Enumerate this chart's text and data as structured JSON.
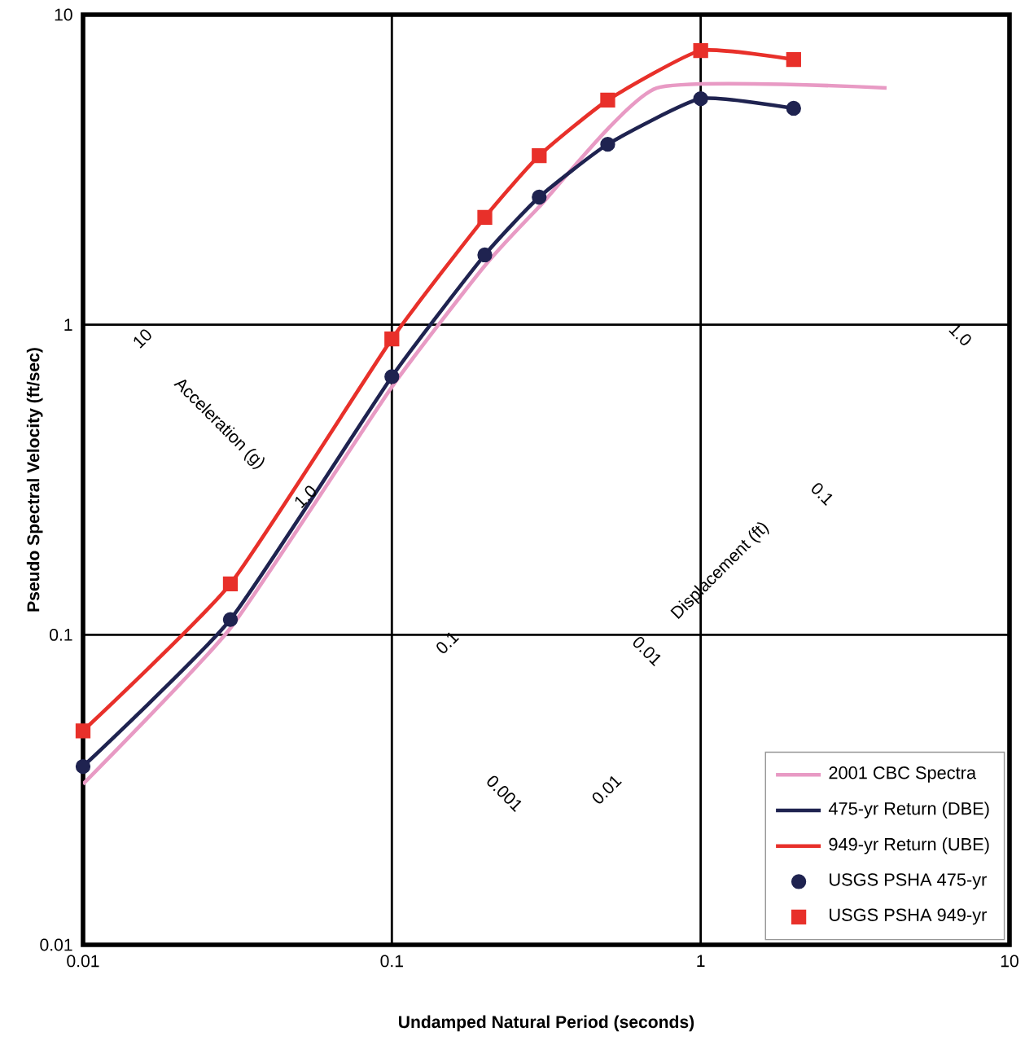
{
  "chart_data": {
    "type": "line",
    "xlabel": "Undamped Natural Period (seconds)",
    "ylabel": "Pseudo Spectral Velocity (ft/sec)",
    "log": "xy",
    "grid": true,
    "legend": "bottom right",
    "xlim": [
      0.01,
      10
    ],
    "xticks": [
      0.01,
      0.1,
      1,
      10
    ],
    "ylim": [
      0.01,
      10
    ],
    "yticks": [
      0.01,
      0.1,
      1,
      10
    ],
    "series": [
      {
        "name": "2001 CBC Spectra",
        "color": "#e89ac4",
        "line_style": "solid",
        "marker": "none",
        "x": [
          0.01,
          0.03,
          0.1,
          0.2,
          0.3,
          0.72,
          4
        ],
        "values": [
          0.033,
          0.105,
          0.63,
          1.55,
          2.4,
          5.8,
          5.8
        ]
      },
      {
        "name": "475-yr Return (DBE)",
        "color": "#1f2350",
        "line_style": "solid",
        "marker": "none",
        "x": [
          0.01,
          0.03,
          0.1,
          0.2,
          0.3,
          0.5,
          1,
          2
        ],
        "values": [
          0.0376,
          0.112,
          0.68,
          1.68,
          2.58,
          3.82,
          5.36,
          4.99
        ]
      },
      {
        "name": "949-yr Return (UBE)",
        "color": "#e8302a",
        "line_style": "solid",
        "marker": "none",
        "x": [
          0.01,
          0.03,
          0.1,
          0.2,
          0.3,
          0.5,
          1,
          2
        ],
        "values": [
          0.049,
          0.146,
          0.9,
          2.22,
          3.51,
          5.3,
          7.66,
          7.17
        ]
      },
      {
        "name": "USGS PSHA 475-yr",
        "type": "scatter",
        "color": "#1f2350",
        "marker": "circle",
        "x": [
          0.01,
          0.03,
          0.1,
          0.2,
          0.3,
          0.5,
          1,
          2
        ],
        "values": [
          0.0376,
          0.112,
          0.68,
          1.68,
          2.58,
          3.82,
          5.36,
          4.99
        ]
      },
      {
        "name": "USGS PSHA 949-yr",
        "type": "scatter",
        "color": "#e8302a",
        "marker": "square",
        "x": [
          0.01,
          0.03,
          0.1,
          0.2,
          0.3,
          0.5,
          1,
          2
        ],
        "values": [
          0.049,
          0.146,
          0.9,
          2.22,
          3.51,
          5.3,
          7.66,
          7.17
        ]
      }
    ],
    "annotations": [
      "10",
      "Acceleration (g)",
      "1.0",
      "1.0",
      "0.1",
      "Displacement (ft)",
      "0.1",
      "0.01",
      "0.001",
      "0.01"
    ]
  }
}
